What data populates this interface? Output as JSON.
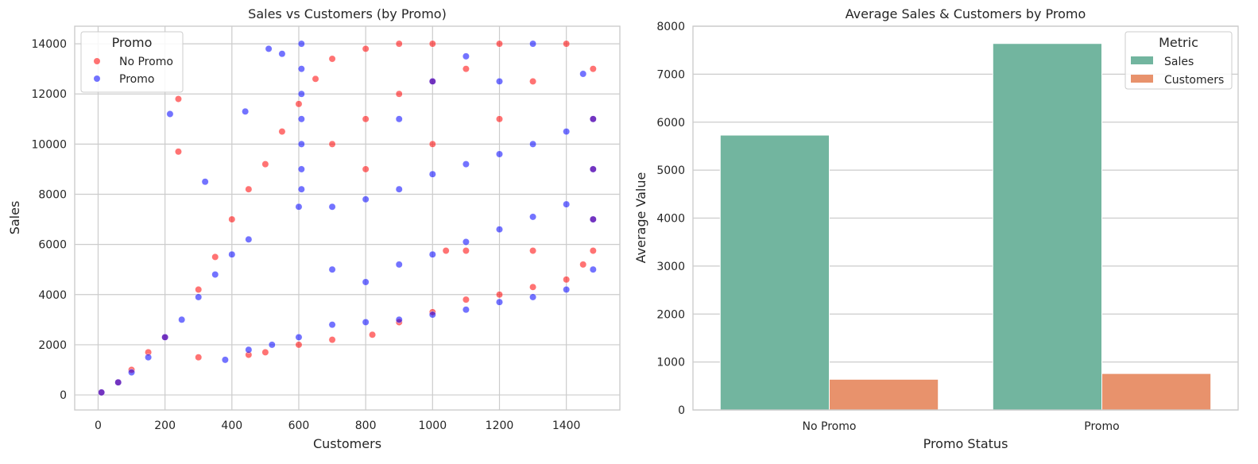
{
  "chart_data": [
    {
      "type": "scatter",
      "title": "Sales vs Customers (by Promo)",
      "xlabel": "Customers",
      "ylabel": "Sales",
      "xlim": [
        -70,
        1560
      ],
      "ylim": [
        -600,
        14700
      ],
      "xticks": [
        0,
        200,
        400,
        600,
        800,
        1000,
        1200,
        1400
      ],
      "yticks": [
        0,
        2000,
        4000,
        6000,
        8000,
        10000,
        12000,
        14000
      ],
      "grid": true,
      "legend": {
        "title": "Promo",
        "position": "top-left"
      },
      "series": [
        {
          "name": "No Promo",
          "color": "#ff0000",
          "points": [
            [
              10,
              100
            ],
            [
              60,
              500
            ],
            [
              100,
              1000
            ],
            [
              150,
              1700
            ],
            [
              200,
              2300
            ],
            [
              240,
              11800
            ],
            [
              240,
              9700
            ],
            [
              300,
              4200
            ],
            [
              350,
              5500
            ],
            [
              400,
              7000
            ],
            [
              450,
              8200
            ],
            [
              500,
              9200
            ],
            [
              550,
              10500
            ],
            [
              600,
              11600
            ],
            [
              650,
              12600
            ],
            [
              700,
              13400
            ],
            [
              800,
              13800
            ],
            [
              900,
              14000
            ],
            [
              1000,
              14000
            ],
            [
              1200,
              14000
            ],
            [
              1400,
              14000
            ],
            [
              1480,
              13000
            ],
            [
              1480,
              11000
            ],
            [
              1480,
              9000
            ],
            [
              1480,
              7000
            ],
            [
              1450,
              5200
            ],
            [
              1400,
              4600
            ],
            [
              1300,
              4300
            ],
            [
              1200,
              4000
            ],
            [
              1100,
              3800
            ],
            [
              1000,
              3300
            ],
            [
              900,
              2900
            ],
            [
              820,
              2400
            ],
            [
              700,
              2200
            ],
            [
              600,
              2000
            ],
            [
              500,
              1700
            ],
            [
              450,
              1600
            ],
            [
              300,
              1500
            ],
            [
              1300,
              5750
            ],
            [
              1100,
              5750
            ],
            [
              1040,
              5750
            ],
            [
              1480,
              5750
            ],
            [
              800,
              11000
            ],
            [
              900,
              12000
            ],
            [
              1000,
              12500
            ],
            [
              1100,
              13000
            ],
            [
              1300,
              12500
            ],
            [
              1200,
              11000
            ],
            [
              1000,
              10000
            ],
            [
              800,
              9000
            ],
            [
              700,
              10000
            ]
          ]
        },
        {
          "name": "Promo",
          "color": "#0000ff",
          "points": [
            [
              10,
              100
            ],
            [
              60,
              500
            ],
            [
              100,
              900
            ],
            [
              150,
              1500
            ],
            [
              200,
              2300
            ],
            [
              215,
              11200
            ],
            [
              250,
              3000
            ],
            [
              300,
              3900
            ],
            [
              320,
              8500
            ],
            [
              350,
              4800
            ],
            [
              400,
              5600
            ],
            [
              440,
              11300
            ],
            [
              450,
              6200
            ],
            [
              510,
              13800
            ],
            [
              550,
              13600
            ],
            [
              608,
              14000
            ],
            [
              608,
              13000
            ],
            [
              608,
              12000
            ],
            [
              608,
              11000
            ],
            [
              608,
              10000
            ],
            [
              608,
              9000
            ],
            [
              608,
              8200
            ],
            [
              600,
              7500
            ],
            [
              700,
              7500
            ],
            [
              800,
              7800
            ],
            [
              900,
              8200
            ],
            [
              1000,
              8800
            ],
            [
              1100,
              9200
            ],
            [
              1200,
              9600
            ],
            [
              1300,
              10000
            ],
            [
              1400,
              10500
            ],
            [
              1480,
              11000
            ],
            [
              1480,
              9000
            ],
            [
              1480,
              7000
            ],
            [
              1480,
              5000
            ],
            [
              1400,
              4200
            ],
            [
              1300,
              3900
            ],
            [
              1200,
              3700
            ],
            [
              1100,
              3400
            ],
            [
              1000,
              3200
            ],
            [
              900,
              3000
            ],
            [
              800,
              2900
            ],
            [
              700,
              2800
            ],
            [
              600,
              2300
            ],
            [
              520,
              2000
            ],
            [
              450,
              1800
            ],
            [
              380,
              1400
            ],
            [
              1300,
              14000
            ],
            [
              1100,
              13500
            ],
            [
              1000,
              12500
            ],
            [
              900,
              11000
            ],
            [
              1200,
              12500
            ],
            [
              1450,
              12800
            ],
            [
              700,
              5000
            ],
            [
              800,
              4500
            ],
            [
              900,
              5200
            ],
            [
              1000,
              5600
            ],
            [
              1100,
              6100
            ],
            [
              1200,
              6600
            ],
            [
              1300,
              7100
            ],
            [
              1400,
              7600
            ]
          ]
        }
      ]
    },
    {
      "type": "bar",
      "title": "Average Sales & Customers by Promo",
      "xlabel": "Promo Status",
      "ylabel": "Average Value",
      "categories": [
        "No Promo",
        "Promo"
      ],
      "ylim": [
        0,
        8000
      ],
      "yticks": [
        0,
        1000,
        2000,
        3000,
        4000,
        5000,
        6000,
        7000,
        8000
      ],
      "grid": true,
      "legend": {
        "title": "Metric",
        "position": "top-right"
      },
      "series": [
        {
          "name": "Sales",
          "color": "#72b59f",
          "values": [
            5730,
            7640
          ]
        },
        {
          "name": "Customers",
          "color": "#e8926c",
          "values": [
            640,
            760
          ]
        }
      ]
    }
  ]
}
